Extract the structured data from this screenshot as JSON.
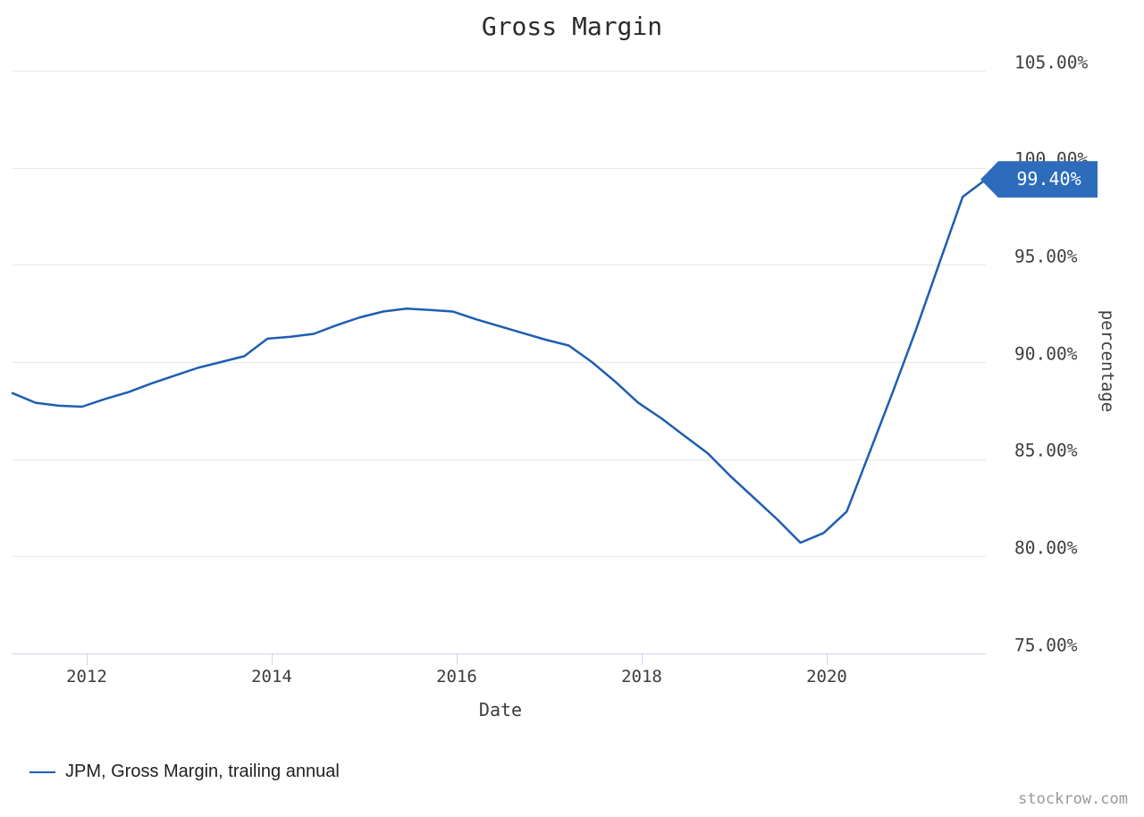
{
  "page": {
    "watermark": "stockrow.com"
  },
  "legend": {
    "series_label": "JPM, Gross Margin, trailing annual"
  },
  "badge": {
    "label": "99.40%"
  },
  "colors": {
    "line": "#1e5eb1",
    "badge_bg": "#2c6cba",
    "badge_text": "#ffffff",
    "grid": "#e7e7e7",
    "axis": "#ccd6ea",
    "tick_label": "#3d3d3d",
    "title": "#2b2b2b",
    "legend_text": "#1f1f1f",
    "watermark": "#999999"
  },
  "chart_data": {
    "type": "line",
    "title": "Gross Margin",
    "xlabel": "Date",
    "ylabel": "percentage",
    "grid": true,
    "legend_position": "bottom-left",
    "x_axis": {
      "tick_labels": [
        "2012",
        "2014",
        "2016",
        "2018",
        "2020"
      ],
      "tick_years": [
        2012,
        2014,
        2016,
        2018,
        2020
      ]
    },
    "y_axis": {
      "tick_labels": [
        "105.00%",
        "100.00%",
        "95.00%",
        "90.00%",
        "85.00%",
        "80.00%",
        "75.00%"
      ],
      "tick_values": [
        105,
        100,
        95,
        90,
        85,
        80,
        75
      ],
      "range": [
        75,
        105
      ]
    },
    "series": [
      {
        "name": "JPM, Gross Margin, trailing annual",
        "color": "#1e5eb1",
        "last_value_label": "99.40%",
        "x": [
          "2011 Q1",
          "2011 Q2",
          "2011 Q3",
          "2011 Q4",
          "2012 Q1",
          "2012 Q2",
          "2012 Q3",
          "2012 Q4",
          "2013 Q1",
          "2013 Q2",
          "2013 Q3",
          "2013 Q4",
          "2014 Q1",
          "2014 Q2",
          "2014 Q3",
          "2014 Q4",
          "2015 Q1",
          "2015 Q2",
          "2015 Q3",
          "2015 Q4",
          "2016 Q1",
          "2016 Q2",
          "2016 Q3",
          "2016 Q4",
          "2017 Q1",
          "2017 Q2",
          "2017 Q3",
          "2017 Q4",
          "2018 Q1",
          "2018 Q2",
          "2018 Q3",
          "2018 Q4",
          "2019 Q1",
          "2019 Q2",
          "2019 Q3",
          "2019 Q4",
          "2020 Q1",
          "2020 Q2",
          "2020 Q3",
          "2020 Q4",
          "2021 Q1",
          "2021 Q2",
          "2021 Q3"
        ],
        "values": [
          88.4,
          87.9,
          87.75,
          87.7,
          88.1,
          88.45,
          88.9,
          89.3,
          89.7,
          90.0,
          90.3,
          91.2,
          91.3,
          91.45,
          91.9,
          92.3,
          92.6,
          92.75,
          92.68,
          92.6,
          92.2,
          91.85,
          91.5,
          91.15,
          90.85,
          90.0,
          89.0,
          87.9,
          87.1,
          86.2,
          85.3,
          84.1,
          83.0,
          81.9,
          80.7,
          81.2,
          82.3,
          85.4,
          88.5,
          91.7,
          95.1,
          98.5,
          99.4
        ]
      }
    ]
  }
}
